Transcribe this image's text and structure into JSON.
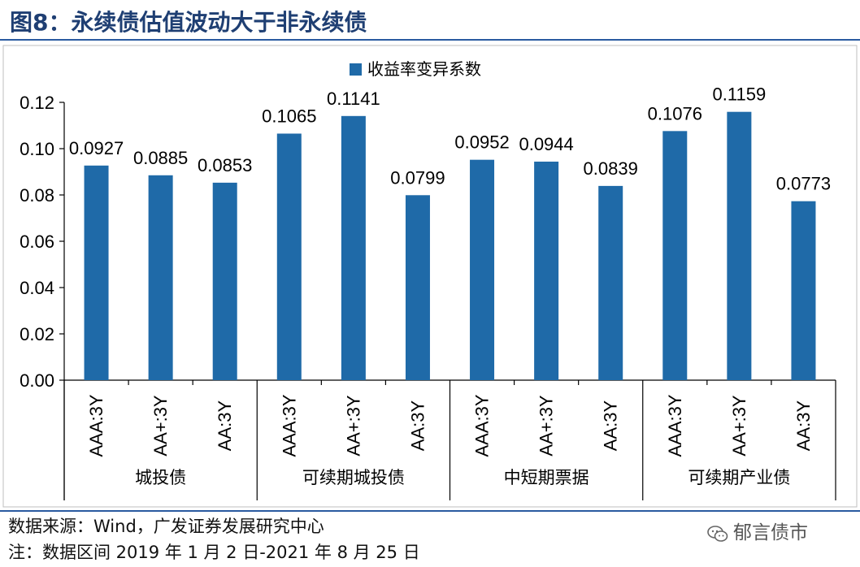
{
  "figure": {
    "title": "图8：永续债估值波动大于非永续债",
    "source": "数据来源：Wind，广发证券发展研究中心",
    "note": "注：数据区间 2019 年 1 月 2 日-2021 年 8 月 25 日",
    "watermark": "郁言债市"
  },
  "chart_data": {
    "type": "bar",
    "legend": {
      "entries": [
        "收益率变异系数"
      ],
      "position": "top-center"
    },
    "ylim": [
      0,
      0.12
    ],
    "yticks": [
      "0.00",
      "0.02",
      "0.04",
      "0.06",
      "0.08",
      "0.10",
      "0.12"
    ],
    "grid": false,
    "groups": [
      "城投债",
      "可续期城投债",
      "中短期票据",
      "可续期产业债"
    ],
    "categories": [
      "AAA:3Y",
      "AA+:3Y",
      "AA:3Y",
      "AAA:3Y",
      "AA+:3Y",
      "AA:3Y",
      "AAA:3Y",
      "AA+:3Y",
      "AA:3Y",
      "AAA:3Y",
      "AA+:3Y",
      "AA:3Y"
    ],
    "series": [
      {
        "name": "收益率变异系数",
        "color": "#1f6aa8",
        "values": [
          0.0927,
          0.0885,
          0.0853,
          0.1065,
          0.1141,
          0.0799,
          0.0952,
          0.0944,
          0.0839,
          0.1076,
          0.1159,
          0.0773
        ],
        "labels": [
          "0.0927",
          "0.0885",
          "0.0853",
          "0.1065",
          "0.1141",
          "0.0799",
          "0.0952",
          "0.0944",
          "0.0839",
          "0.1076",
          "0.1159",
          "0.0773"
        ]
      }
    ]
  }
}
